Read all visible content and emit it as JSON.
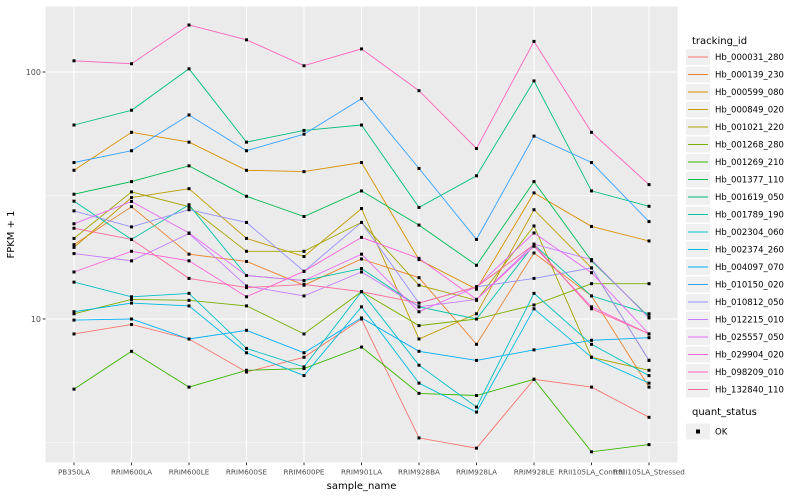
{
  "chart_data": {
    "type": "line",
    "title": "",
    "xlabel": "sample_name",
    "ylabel": "FPKM + 1",
    "y_scale": "log10",
    "ylim": [
      2.7,
      185
    ],
    "grid": true,
    "panel_bg": "#EBEBEB",
    "grid_color": "#FFFFFF",
    "axis_text_color": "#4D4D4D",
    "point_marker": "black-square",
    "point_color": "#000000",
    "y_major_ticks": [
      {
        "label": "10",
        "value": 10
      },
      {
        "label": "100",
        "value": 100
      }
    ],
    "y_minor_ticks": [
      3.162,
      31.62
    ],
    "categories": [
      "PB350LA",
      "RRIM600LA",
      "RRIM600LE",
      "RRIM600SE",
      "RRIM600PE",
      "RRIM901LA",
      "RRIM928BA",
      "RRIM928LA",
      "RRIM928LE",
      "RRII105LA_Control",
      "RRII105LA_Stressed"
    ],
    "legend": {
      "position": "right",
      "line_legend_title": "tracking_id",
      "point_legend_title": "quant_status",
      "point_legend_items": [
        {
          "label": "OK",
          "marker": "black-square"
        }
      ]
    },
    "series": [
      {
        "name": "Hb_000031_280",
        "color": "#F8766D",
        "values": [
          8.7,
          9.5,
          8.3,
          6.1,
          7.0,
          10.0,
          3.3,
          3.0,
          5.7,
          5.3,
          4.0
        ]
      },
      {
        "name": "Hb_000139_230",
        "color": "#EA8331",
        "values": [
          20.0,
          28.5,
          18.3,
          17.1,
          13.7,
          17.5,
          14.7,
          7.9,
          18.5,
          12.4,
          5.3
        ]
      },
      {
        "name": "Hb_000599_080",
        "color": "#D89000",
        "values": [
          40.0,
          57.0,
          52.0,
          40.0,
          39.5,
          43.0,
          17.4,
          13.2,
          32.4,
          23.7,
          20.7
        ]
      },
      {
        "name": "Hb_000849_020",
        "color": "#C09B00",
        "values": [
          19.5,
          31.0,
          33.7,
          21.2,
          17.9,
          28.0,
          8.3,
          10.5,
          27.7,
          16.1,
          6.8
        ]
      },
      {
        "name": "Hb_001021_220",
        "color": "#A3A500",
        "values": [
          21.2,
          32.7,
          28.5,
          18.8,
          18.8,
          24.6,
          13.7,
          11.9,
          23.8,
          7.0,
          6.2
        ]
      },
      {
        "name": "Hb_001268_280",
        "color": "#7CAE00",
        "values": [
          10.5,
          12.0,
          11.9,
          11.3,
          8.7,
          12.9,
          9.4,
          10.0,
          11.4,
          13.9,
          13.9
        ]
      },
      {
        "name": "Hb_001269_210",
        "color": "#39B600",
        "values": [
          5.2,
          7.4,
          5.3,
          6.2,
          6.3,
          7.7,
          5.0,
          4.9,
          5.7,
          2.9,
          3.1
        ]
      },
      {
        "name": "Hb_001377_110",
        "color": "#00BB4E",
        "values": [
          32.0,
          36.0,
          41.7,
          31.4,
          26.0,
          33.0,
          24.0,
          16.5,
          36.0,
          17.2,
          10.2
        ]
      },
      {
        "name": "Hb_001619_050",
        "color": "#00BF7D",
        "values": [
          61.0,
          70.0,
          103.0,
          52.0,
          58.0,
          61.0,
          28.3,
          38.0,
          92.0,
          33.0,
          28.6
        ]
      },
      {
        "name": "Hb_001789_190",
        "color": "#00C1A3",
        "values": [
          30.0,
          21.0,
          29.0,
          15.0,
          14.3,
          16.0,
          11.2,
          10.0,
          20.0,
          12.4,
          10.5
        ]
      },
      {
        "name": "Hb_002304_060",
        "color": "#00BFC4",
        "values": [
          14.1,
          12.3,
          12.7,
          7.6,
          6.4,
          12.9,
          6.5,
          4.4,
          12.7,
          7.9,
          5.9
        ]
      },
      {
        "name": "Hb_002374_260",
        "color": "#00BAE0",
        "values": [
          10.7,
          11.6,
          11.3,
          7.3,
          5.9,
          11.2,
          5.5,
          4.2,
          11.0,
          7.0,
          5.5
        ]
      },
      {
        "name": "Hb_004097_070",
        "color": "#00B0F6",
        "values": [
          9.9,
          10.0,
          8.3,
          9.0,
          7.3,
          10.1,
          7.4,
          6.8,
          7.5,
          8.2,
          8.4
        ]
      },
      {
        "name": "Hb_010150_020",
        "color": "#35A2FF",
        "values": [
          43.0,
          48.0,
          67.0,
          48.0,
          56.0,
          78.0,
          40.7,
          21.0,
          55.0,
          43.0,
          24.8
        ]
      },
      {
        "name": "Hb_010812_050",
        "color": "#9590FF",
        "values": [
          27.4,
          23.6,
          27.7,
          24.6,
          15.6,
          24.6,
          11.6,
          13.5,
          14.6,
          16.1,
          6.8
        ]
      },
      {
        "name": "Hb_012215_010",
        "color": "#C77CFF",
        "values": [
          18.4,
          17.2,
          22.2,
          13.6,
          12.4,
          15.5,
          11.2,
          12.0,
          20.1,
          17.4,
          10.1
        ]
      },
      {
        "name": "Hb_025557_050",
        "color": "#E76BF3",
        "values": [
          24.3,
          29.9,
          22.3,
          15.0,
          14.3,
          18.3,
          10.7,
          13.5,
          22.3,
          15.4,
          8.7
        ]
      },
      {
        "name": "Hb_029904_020",
        "color": "#FA62DB",
        "values": [
          15.5,
          18.8,
          17.2,
          12.3,
          15.6,
          21.4,
          17.6,
          12.0,
          19.7,
          11.2,
          8.7
        ]
      },
      {
        "name": "Hb_098209_010",
        "color": "#FF62BC",
        "values": [
          111,
          108,
          155,
          135,
          106,
          124,
          84,
          49,
          133,
          57,
          35
        ]
      },
      {
        "name": "Hb_132840_110",
        "color": "#FF6A98",
        "values": [
          23.3,
          21.0,
          14.6,
          13.4,
          13.8,
          12.9,
          11.6,
          13.5,
          20.0,
          11.0,
          8.7
        ]
      }
    ]
  }
}
